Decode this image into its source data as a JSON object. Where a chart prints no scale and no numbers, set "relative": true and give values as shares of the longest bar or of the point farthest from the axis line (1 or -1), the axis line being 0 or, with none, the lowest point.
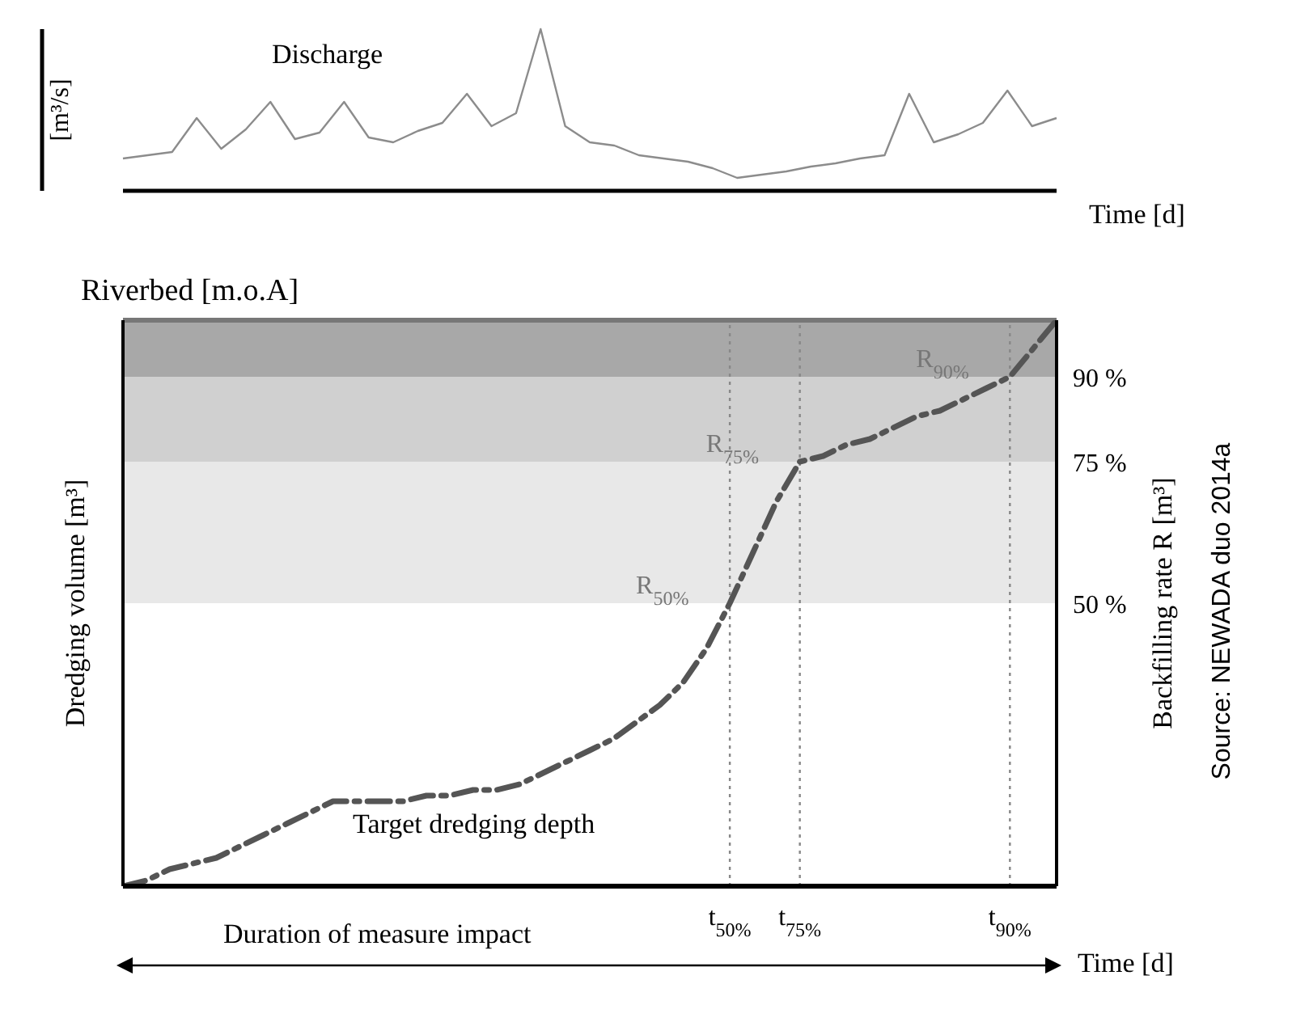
{
  "chart_data": [
    {
      "type": "line",
      "relative": true,
      "ylabel": "[m³/s]",
      "xlabel": "Time [d]",
      "annotations": [
        "Discharge"
      ],
      "color": "#8c8c8c",
      "categories": [
        null,
        null,
        null,
        null,
        null,
        null,
        null,
        null,
        null,
        null,
        null,
        null,
        null,
        null,
        null,
        null,
        null,
        null,
        null,
        null,
        null,
        null,
        null,
        null,
        null,
        null,
        null,
        null,
        null,
        null,
        null,
        null,
        null,
        null,
        null,
        null,
        null,
        null,
        null
      ],
      "values": [
        0.2,
        0.22,
        0.24,
        0.45,
        0.26,
        0.38,
        0.55,
        0.32,
        0.36,
        0.55,
        0.33,
        0.3,
        0.37,
        0.42,
        0.6,
        0.4,
        0.48,
        1.0,
        0.4,
        0.3,
        0.28,
        0.22,
        0.2,
        0.18,
        0.14,
        0.08,
        0.1,
        0.12,
        0.15,
        0.17,
        0.2,
        0.22,
        0.6,
        0.3,
        0.35,
        0.42,
        0.62,
        0.4,
        0.45
      ]
    },
    {
      "type": "line",
      "line_style": "dashed",
      "ylabel": "Dredging volume [m³]",
      "y2label": "Backfilling rate  R [m³]",
      "xlabel": "Time [d]",
      "annotations": [
        "Target dredging depth",
        "Duration of measure impact",
        "R$_{50%}$",
        "R$_{75%}$",
        "R$_{90%}$",
        "Source: NEWADA duo 2014a"
      ],
      "categories": [
        null,
        null,
        null,
        null,
        null,
        null,
        null,
        null,
        null,
        null,
        null,
        null,
        null,
        null,
        null,
        null,
        null,
        null,
        null,
        null,
        null,
        null,
        null,
        null,
        null,
        null,
        "t$_{50%}$",
        null,
        null,
        "t$_{75%}$",
        null,
        null,
        null,
        null,
        null,
        null,
        null,
        null,
        "t$_{90%}$",
        null,
        null
      ],
      "y2lim": [
        0,
        100
      ],
      "y2ticks": [
        {
          "value": 50,
          "label": "50 %"
        },
        {
          "value": 75,
          "label": "75 %"
        },
        {
          "value": 90,
          "label": "90 %"
        }
      ],
      "bands": [
        {
          "axis": "y2",
          "from": 50,
          "to": 75,
          "color": "#e8e8e8"
        },
        {
          "axis": "y2",
          "from": 75,
          "to": 90,
          "color": "#d0d0d0"
        },
        {
          "axis": "y2",
          "from": 90,
          "to": 100,
          "color": "#a8a8a8"
        }
      ],
      "ref_lines": [
        {
          "axis": "y2",
          "value": 100,
          "label": "Riverbed [m.o.A]",
          "color": "#777777",
          "line_style": "solid"
        },
        {
          "axis": "x",
          "value": "t$_{50%}$",
          "color": "#888888",
          "line_style": "dotted"
        },
        {
          "axis": "x",
          "value": "t$_{75%}$",
          "color": "#888888",
          "line_style": "dotted"
        },
        {
          "axis": "x",
          "value": "t$_{90%}$",
          "color": "#888888",
          "line_style": "dotted"
        }
      ],
      "series": [
        {
          "color": "#555555",
          "axis": "y2",
          "values": [
            0,
            1,
            3,
            4,
            5,
            7,
            9,
            11,
            13,
            15,
            15,
            15,
            15,
            16,
            16,
            17,
            17,
            18,
            20,
            22,
            24,
            26,
            29,
            32,
            36,
            42,
            50,
            59,
            68,
            75,
            76,
            78,
            79,
            81,
            83,
            84,
            86,
            88,
            90,
            95,
            100
          ]
        }
      ]
    }
  ]
}
